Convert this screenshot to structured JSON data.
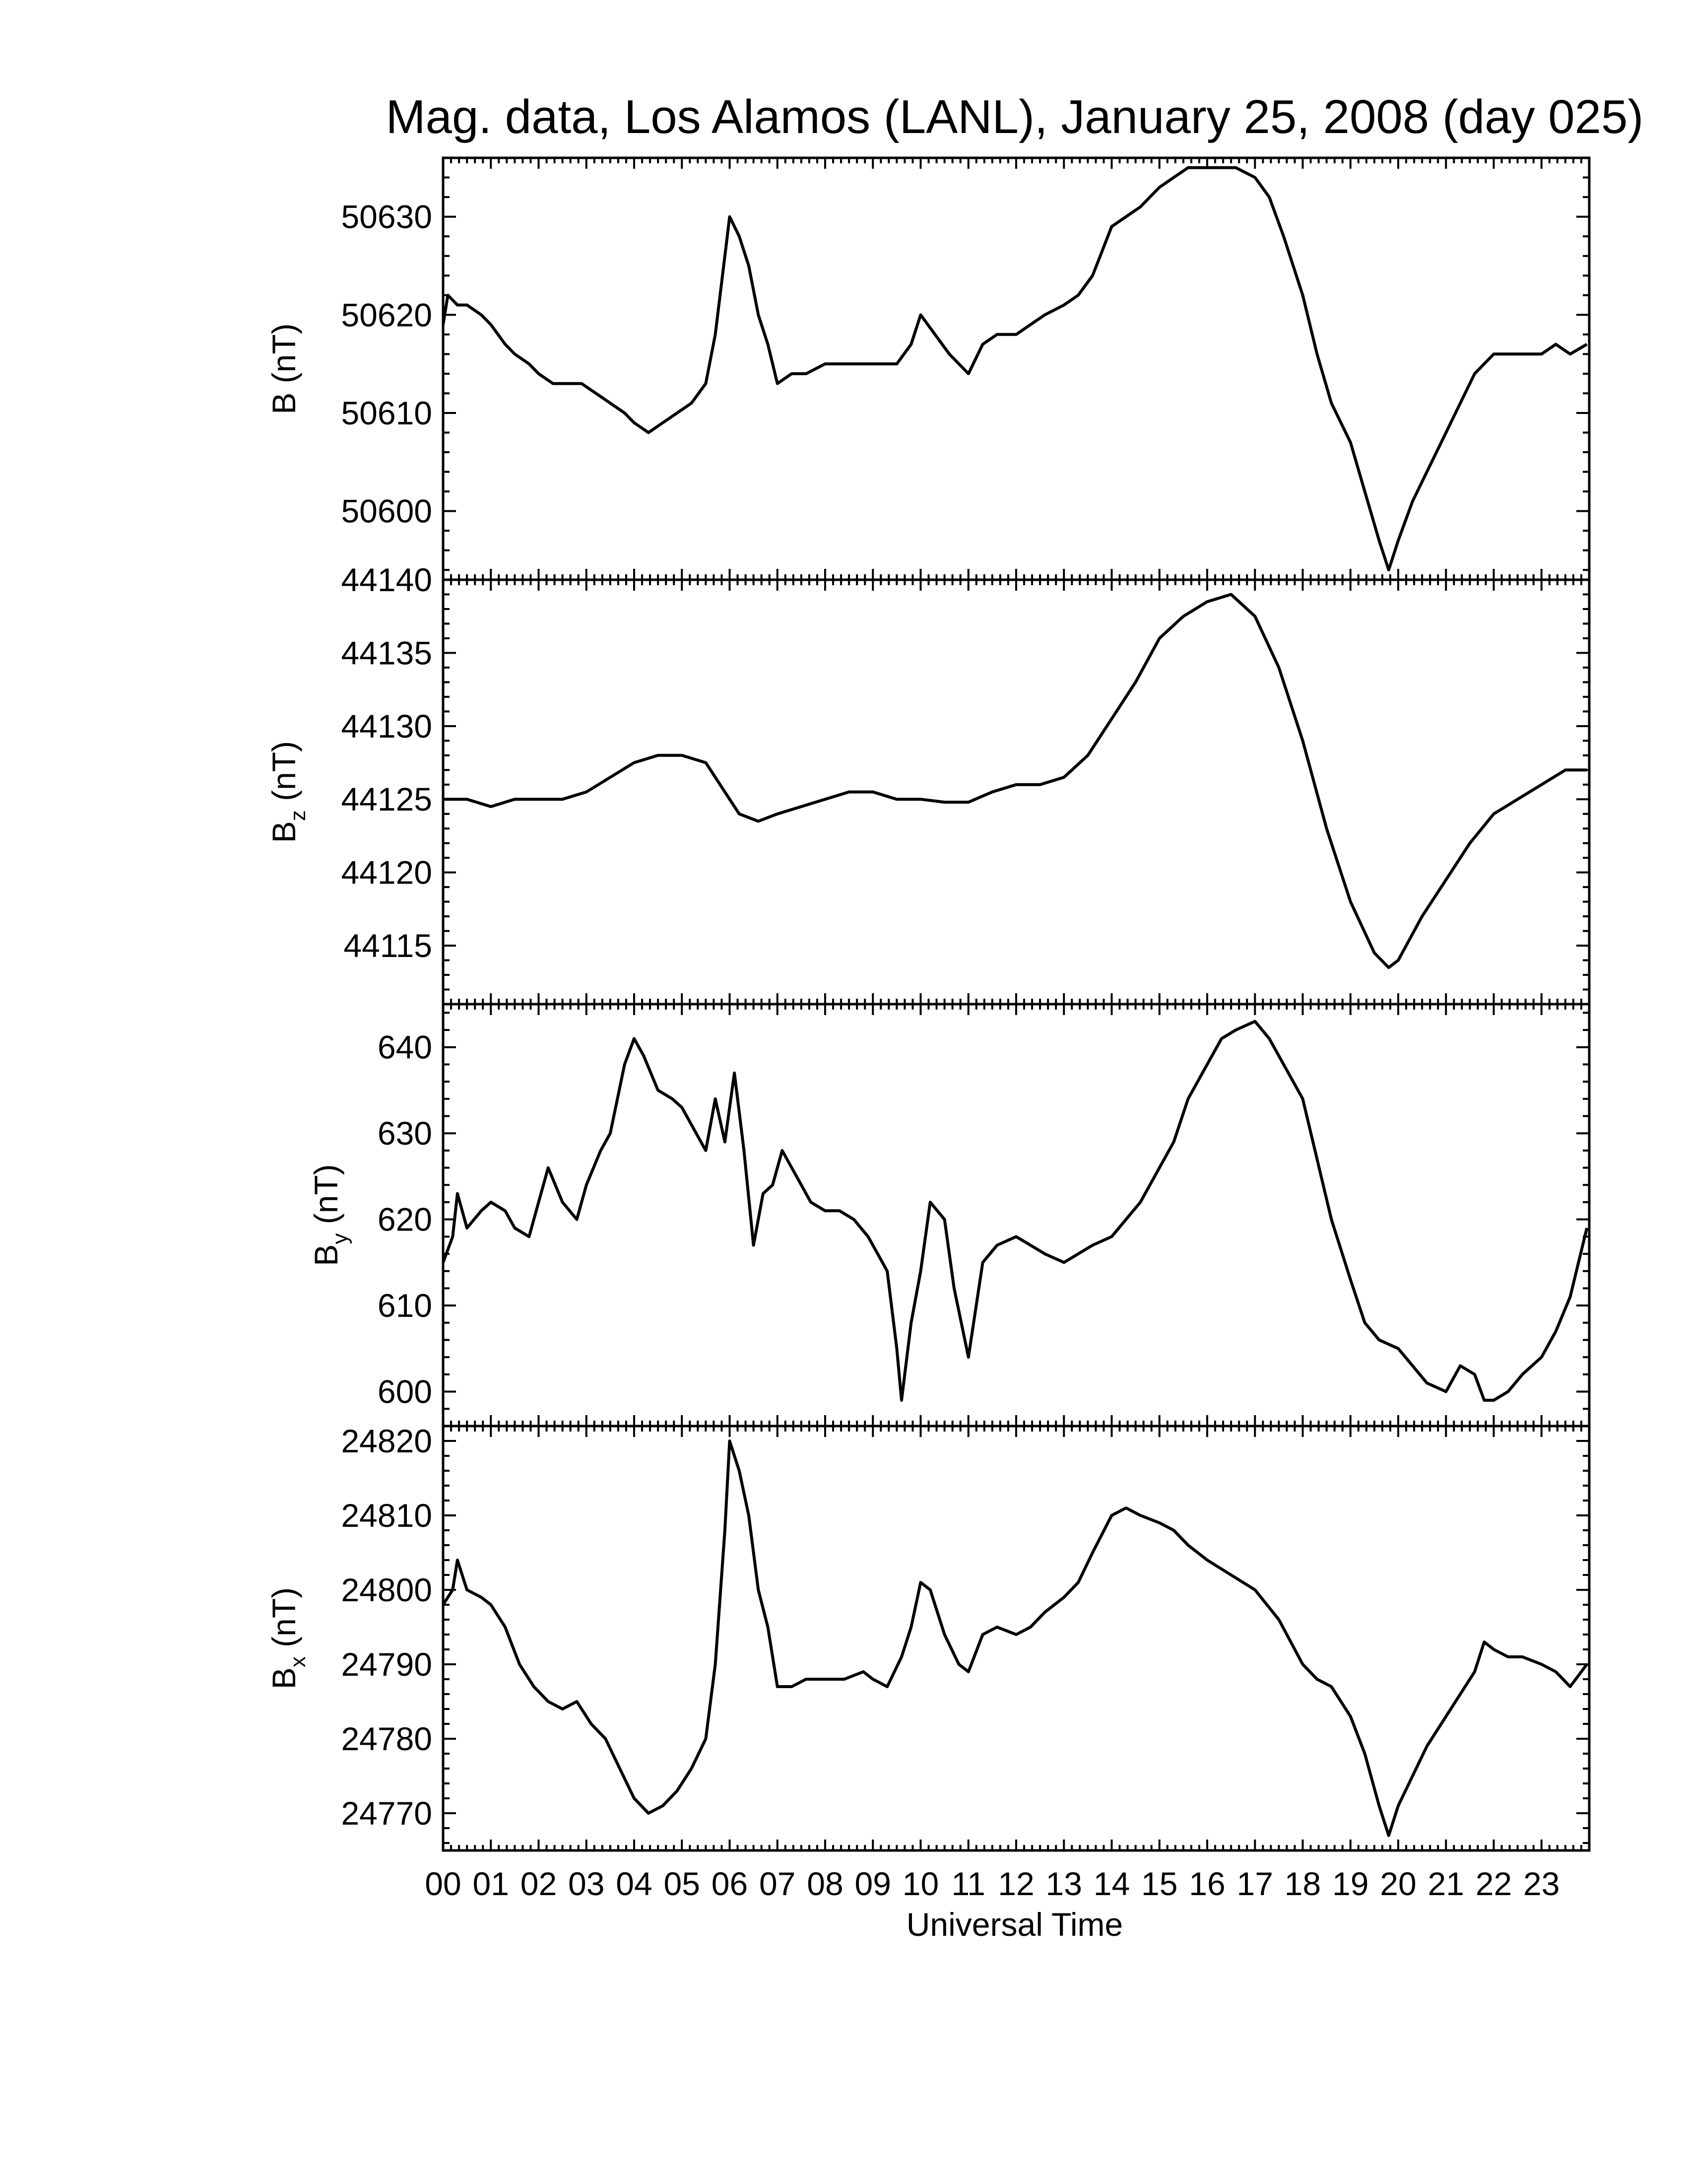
{
  "chart_data": {
    "type": "line",
    "title": "Mag. data, Los Alamos (LANL), January 25, 2008 (day 025)",
    "xlabel": "Universal Time",
    "xlim": [
      0,
      24
    ],
    "x_ticks": [
      "00",
      "01",
      "02",
      "03",
      "04",
      "05",
      "06",
      "07",
      "08",
      "09",
      "10",
      "11",
      "12",
      "13",
      "14",
      "15",
      "16",
      "17",
      "18",
      "19",
      "20",
      "21",
      "22",
      "23"
    ],
    "grid": false,
    "legend": "none",
    "line_color": "#000000",
    "panels": [
      {
        "id": "B",
        "ylabel": {
          "main": "B",
          "sub": "",
          "unit": " (nT)"
        },
        "ylim": [
          50593,
          50636
        ],
        "y_ticks": [
          50600,
          50610,
          50620,
          50630
        ],
        "x": [
          0,
          0.1,
          0.3,
          0.5,
          0.8,
          1.0,
          1.3,
          1.5,
          1.8,
          2.0,
          2.3,
          2.6,
          2.9,
          3.2,
          3.5,
          3.8,
          4.0,
          4.3,
          4.6,
          4.9,
          5.2,
          5.5,
          5.7,
          5.9,
          6.0,
          6.2,
          6.4,
          6.6,
          6.8,
          7.0,
          7.3,
          7.6,
          8.0,
          8.5,
          9.0,
          9.5,
          9.8,
          10.0,
          10.3,
          10.6,
          11.0,
          11.3,
          11.6,
          12.0,
          12.3,
          12.6,
          13.0,
          13.3,
          13.6,
          14.0,
          14.3,
          14.6,
          15.0,
          15.3,
          15.6,
          16.0,
          16.3,
          16.6,
          17.0,
          17.3,
          17.6,
          18.0,
          18.3,
          18.6,
          19.0,
          19.3,
          19.6,
          19.8,
          20.0,
          20.3,
          20.6,
          21.0,
          21.3,
          21.6,
          22.0,
          22.3,
          22.6,
          23.0,
          23.3,
          23.6,
          23.95
        ],
        "values": [
          50619,
          50622,
          50621,
          50621,
          50620,
          50619,
          50617,
          50616,
          50615,
          50614,
          50613,
          50613,
          50613,
          50612,
          50611,
          50610,
          50609,
          50608,
          50609,
          50610,
          50611,
          50613,
          50618,
          50626,
          50630,
          50628,
          50625,
          50620,
          50617,
          50613,
          50614,
          50614,
          50615,
          50615,
          50615,
          50615,
          50617,
          50620,
          50618,
          50616,
          50614,
          50617,
          50618,
          50618,
          50619,
          50620,
          50621,
          50622,
          50624,
          50629,
          50630,
          50631,
          50633,
          50634,
          50635,
          50635,
          50635,
          50635,
          50634,
          50632,
          50628,
          50622,
          50616,
          50611,
          50607,
          50602,
          50597,
          50594,
          50597,
          50601,
          50604,
          50608,
          50611,
          50614,
          50616,
          50616,
          50616,
          50616,
          50617,
          50616,
          50617
        ]
      },
      {
        "id": "Bz",
        "ylabel": {
          "main": "B",
          "sub": "z",
          "unit": " (nT)"
        },
        "ylim": [
          44111,
          44140
        ],
        "y_ticks": [
          44115,
          44120,
          44125,
          44130,
          44135,
          44140
        ],
        "x": [
          0,
          0.5,
          1.0,
          1.5,
          2.0,
          2.5,
          3.0,
          3.5,
          4.0,
          4.5,
          5.0,
          5.5,
          5.8,
          6.2,
          6.6,
          7.0,
          7.5,
          8.0,
          8.5,
          9.0,
          9.5,
          10.0,
          10.5,
          11.0,
          11.5,
          12.0,
          12.5,
          13.0,
          13.5,
          14.0,
          14.5,
          15.0,
          15.5,
          16.0,
          16.5,
          17.0,
          17.5,
          18.0,
          18.5,
          19.0,
          19.5,
          19.8,
          20.0,
          20.5,
          21.0,
          21.5,
          22.0,
          22.5,
          23.0,
          23.5,
          23.95
        ],
        "values": [
          44125,
          44125,
          44124.5,
          44125,
          44125,
          44125,
          44125.5,
          44126.5,
          44127.5,
          44128,
          44128,
          44127.5,
          44126,
          44124,
          44123.5,
          44124,
          44124.5,
          44125,
          44125.5,
          44125.5,
          44125,
          44125,
          44124.8,
          44124.8,
          44125.5,
          44126,
          44126,
          44126.5,
          44128,
          44130.5,
          44133,
          44136,
          44137.5,
          44138.5,
          44139,
          44137.5,
          44134,
          44129,
          44123,
          44118,
          44114.5,
          44113.5,
          44114,
          44117,
          44119.5,
          44122,
          44124,
          44125,
          44126,
          44127,
          44127
        ]
      },
      {
        "id": "By",
        "ylabel": {
          "main": "B",
          "sub": "y",
          "unit": " (nT)"
        },
        "ylim": [
          596,
          645
        ],
        "y_ticks": [
          600,
          610,
          620,
          630,
          640
        ],
        "x": [
          0,
          0.2,
          0.3,
          0.5,
          0.8,
          1.0,
          1.3,
          1.5,
          1.8,
          2.0,
          2.2,
          2.5,
          2.8,
          3.0,
          3.3,
          3.5,
          3.8,
          4.0,
          4.2,
          4.5,
          4.8,
          5.0,
          5.3,
          5.5,
          5.7,
          5.9,
          6.1,
          6.3,
          6.5,
          6.7,
          6.9,
          7.1,
          7.4,
          7.7,
          8.0,
          8.3,
          8.6,
          8.9,
          9.1,
          9.3,
          9.5,
          9.6,
          9.8,
          10.0,
          10.2,
          10.5,
          10.7,
          11.0,
          11.3,
          11.6,
          12.0,
          12.3,
          12.6,
          13.0,
          13.3,
          13.6,
          14.0,
          14.3,
          14.6,
          15.0,
          15.3,
          15.6,
          16.0,
          16.3,
          16.6,
          17.0,
          17.3,
          17.6,
          18.0,
          18.3,
          18.6,
          19.0,
          19.3,
          19.6,
          20.0,
          20.3,
          20.6,
          21.0,
          21.3,
          21.6,
          21.8,
          22.0,
          22.3,
          22.6,
          23.0,
          23.3,
          23.6,
          23.95
        ],
        "values": [
          615,
          618,
          623,
          619,
          621,
          622,
          621,
          619,
          618,
          622,
          626,
          622,
          620,
          624,
          628,
          630,
          638,
          641,
          639,
          635,
          634,
          633,
          630,
          628,
          634,
          629,
          637,
          628,
          617,
          623,
          624,
          628,
          625,
          622,
          621,
          621,
          620,
          618,
          616,
          614,
          605,
          599,
          608,
          614,
          622,
          620,
          612,
          604,
          615,
          617,
          618,
          617,
          616,
          615,
          616,
          617,
          618,
          620,
          622,
          626,
          629,
          634,
          638,
          641,
          642,
          643,
          641,
          638,
          634,
          627,
          620,
          613,
          608,
          606,
          605,
          603,
          601,
          600,
          603,
          602,
          599,
          599,
          600,
          602,
          604,
          607,
          611,
          619
        ]
      },
      {
        "id": "Bx",
        "ylabel": {
          "main": "B",
          "sub": "x",
          "unit": " (nT)"
        },
        "ylim": [
          24765,
          24822
        ],
        "y_ticks": [
          24770,
          24780,
          24790,
          24800,
          24810,
          24820
        ],
        "x": [
          0,
          0.2,
          0.3,
          0.5,
          0.8,
          1.0,
          1.3,
          1.6,
          1.9,
          2.2,
          2.5,
          2.8,
          3.1,
          3.4,
          3.7,
          4.0,
          4.3,
          4.6,
          4.9,
          5.2,
          5.5,
          5.7,
          5.9,
          6.0,
          6.2,
          6.4,
          6.6,
          6.8,
          7.0,
          7.3,
          7.6,
          8.0,
          8.4,
          8.8,
          9.0,
          9.3,
          9.6,
          9.8,
          10.0,
          10.2,
          10.5,
          10.8,
          11.0,
          11.3,
          11.6,
          12.0,
          12.3,
          12.6,
          13.0,
          13.3,
          13.6,
          14.0,
          14.3,
          14.6,
          15.0,
          15.3,
          15.6,
          16.0,
          16.5,
          17.0,
          17.5,
          18.0,
          18.3,
          18.6,
          19.0,
          19.3,
          19.6,
          19.8,
          20.0,
          20.3,
          20.6,
          21.0,
          21.3,
          21.6,
          21.8,
          22.0,
          22.3,
          22.6,
          23.0,
          23.3,
          23.6,
          23.95
        ],
        "values": [
          24798,
          24800,
          24804,
          24800,
          24799,
          24798,
          24795,
          24790,
          24787,
          24785,
          24784,
          24785,
          24782,
          24780,
          24776,
          24772,
          24770,
          24771,
          24773,
          24776,
          24780,
          24790,
          24808,
          24820,
          24816,
          24810,
          24800,
          24795,
          24787,
          24787,
          24788,
          24788,
          24788,
          24789,
          24788,
          24787,
          24791,
          24795,
          24801,
          24800,
          24794,
          24790,
          24789,
          24794,
          24795,
          24794,
          24795,
          24797,
          24799,
          24801,
          24805,
          24810,
          24811,
          24810,
          24809,
          24808,
          24806,
          24804,
          24802,
          24800,
          24796,
          24790,
          24788,
          24787,
          24783,
          24778,
          24771,
          24767,
          24771,
          24775,
          24779,
          24783,
          24786,
          24789,
          24793,
          24792,
          24791,
          24791,
          24790,
          24789,
          24787,
          24790
        ]
      }
    ]
  }
}
